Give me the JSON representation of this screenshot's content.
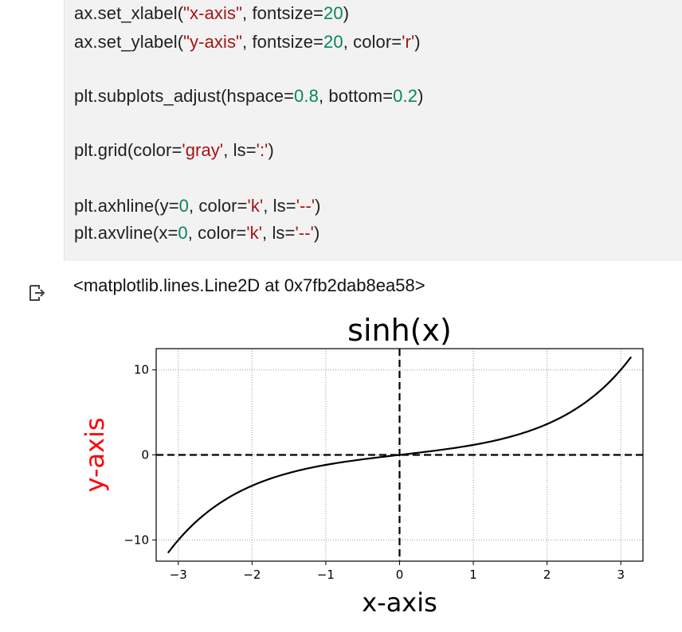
{
  "code_cell": {
    "lines": [
      [
        {
          "t": "ax.set_xlabel(",
          "c": ""
        },
        {
          "t": "\"x-axis\"",
          "c": "str"
        },
        {
          "t": ", fontsize=",
          "c": ""
        },
        {
          "t": "20",
          "c": "num"
        },
        {
          "t": ")",
          "c": ""
        }
      ],
      [
        {
          "t": "ax.set_ylabel(",
          "c": ""
        },
        {
          "t": "\"y-axis\"",
          "c": "str"
        },
        {
          "t": ", fontsize=",
          "c": ""
        },
        {
          "t": "20",
          "c": "num"
        },
        {
          "t": ", color=",
          "c": ""
        },
        {
          "t": "'r'",
          "c": "str"
        },
        {
          "t": ")",
          "c": ""
        }
      ],
      [],
      [
        {
          "t": "plt.subplots_adjust(hspace=",
          "c": ""
        },
        {
          "t": "0.8",
          "c": "num"
        },
        {
          "t": ", bottom=",
          "c": ""
        },
        {
          "t": "0.2",
          "c": "num"
        },
        {
          "t": ")",
          "c": ""
        }
      ],
      [],
      [
        {
          "t": "plt.grid(color=",
          "c": ""
        },
        {
          "t": "'gray'",
          "c": "str"
        },
        {
          "t": ", ls=",
          "c": ""
        },
        {
          "t": "':'",
          "c": "str"
        },
        {
          "t": ")",
          "c": ""
        }
      ],
      [],
      [
        {
          "t": "plt.axhline(y=",
          "c": ""
        },
        {
          "t": "0",
          "c": "num"
        },
        {
          "t": ", color=",
          "c": ""
        },
        {
          "t": "'k'",
          "c": "str"
        },
        {
          "t": ", ls=",
          "c": ""
        },
        {
          "t": "'--'",
          "c": "str"
        },
        {
          "t": ")",
          "c": ""
        }
      ],
      [
        {
          "t": "plt.axvline(x=",
          "c": ""
        },
        {
          "t": "0",
          "c": "num"
        },
        {
          "t": ", color=",
          "c": ""
        },
        {
          "t": "'k'",
          "c": "str"
        },
        {
          "t": ", ls=",
          "c": ""
        },
        {
          "t": "'--'",
          "c": "str"
        },
        {
          "t": ")",
          "c": ""
        }
      ]
    ]
  },
  "output": {
    "icon": "output-arrow-icon",
    "text": "<matplotlib.lines.Line2D at 0x7fb2dab8ea58>"
  },
  "chart_data": {
    "type": "line",
    "title": "sinh(x)",
    "xlabel": "x-axis",
    "ylabel": "y-axis",
    "ylabel_color": "#ff0000",
    "xlim": [
      -3.3,
      3.3
    ],
    "ylim": [
      -12.5,
      12.5
    ],
    "xticks": [
      -3,
      -2,
      -1,
      0,
      1,
      2,
      3
    ],
    "xtick_labels": [
      "−3",
      "−2",
      "−1",
      "0",
      "1",
      "2",
      "3"
    ],
    "yticks": [
      -10,
      0,
      10
    ],
    "ytick_labels": [
      "−10",
      "0",
      "10"
    ],
    "grid": true,
    "grid_color": "#808080",
    "hline": {
      "y": 0,
      "color": "#000000",
      "style": "dashed"
    },
    "vline": {
      "x": 0,
      "color": "#000000",
      "style": "dashed"
    },
    "series": [
      {
        "color": "#000000",
        "function": "sinh",
        "x_range": [
          -3.14,
          3.14
        ]
      }
    ]
  }
}
